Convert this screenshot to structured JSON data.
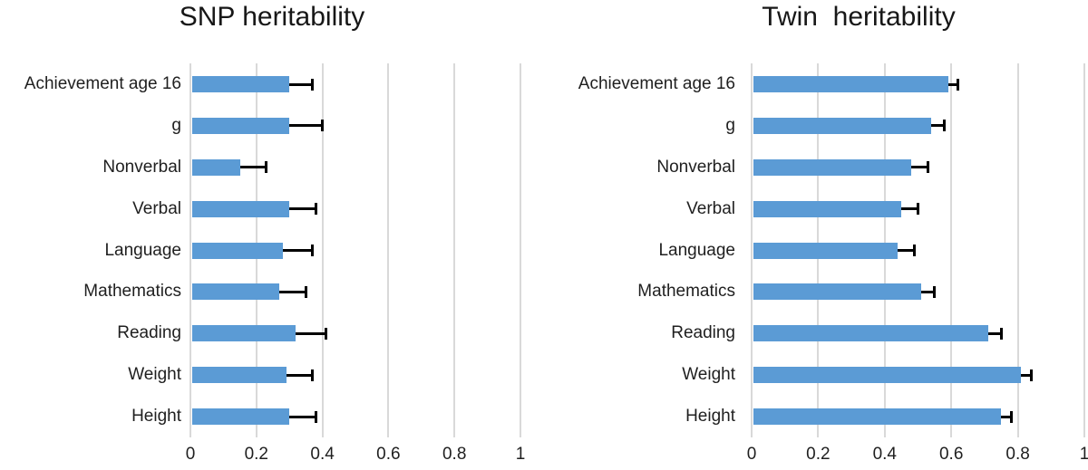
{
  "page": {
    "background_color": "#ffffff",
    "text_color": "#1f1f1f"
  },
  "chart_data": [
    {
      "type": "bar",
      "orientation": "horizontal",
      "title": "SNP heritability",
      "categories": [
        "Achievement age 16",
        "g",
        "Nonverbal",
        "Verbal",
        "Language",
        "Mathematics",
        "Reading",
        "Weight",
        "Height"
      ],
      "values": [
        0.3,
        0.3,
        0.15,
        0.3,
        0.28,
        0.27,
        0.32,
        0.29,
        0.3
      ],
      "error_upper": [
        0.37,
        0.4,
        0.23,
        0.38,
        0.37,
        0.35,
        0.41,
        0.37,
        0.38
      ],
      "xlim": [
        0,
        1
      ],
      "xticks": [
        0,
        0.2,
        0.4,
        0.6,
        0.8,
        1
      ],
      "xtick_labels": [
        "0",
        "0.2",
        "0.4",
        "0.6",
        "0.8",
        "1"
      ],
      "grid": true,
      "legend": false,
      "bar_color": "#5b9bd5",
      "gridline_color": "#d9d9d9",
      "error_bar_color": "#000000"
    },
    {
      "type": "bar",
      "orientation": "horizontal",
      "title": "Twin  heritability",
      "categories": [
        "Achievement age 16",
        "g",
        "Nonverbal",
        "Verbal",
        "Language",
        "Mathematics",
        "Reading",
        "Weight",
        "Height"
      ],
      "values": [
        0.59,
        0.54,
        0.48,
        0.45,
        0.44,
        0.51,
        0.71,
        0.81,
        0.75
      ],
      "error_upper": [
        0.62,
        0.58,
        0.53,
        0.5,
        0.49,
        0.55,
        0.75,
        0.84,
        0.78
      ],
      "xlim": [
        0,
        1
      ],
      "xticks": [
        0,
        0.2,
        0.4,
        0.6,
        0.8,
        1
      ],
      "xtick_labels": [
        "0",
        "0.2",
        "0.4",
        "0.6",
        "0.8",
        "1"
      ],
      "grid": true,
      "legend": false,
      "bar_color": "#5b9bd5",
      "gridline_color": "#d9d9d9",
      "error_bar_color": "#000000"
    }
  ]
}
